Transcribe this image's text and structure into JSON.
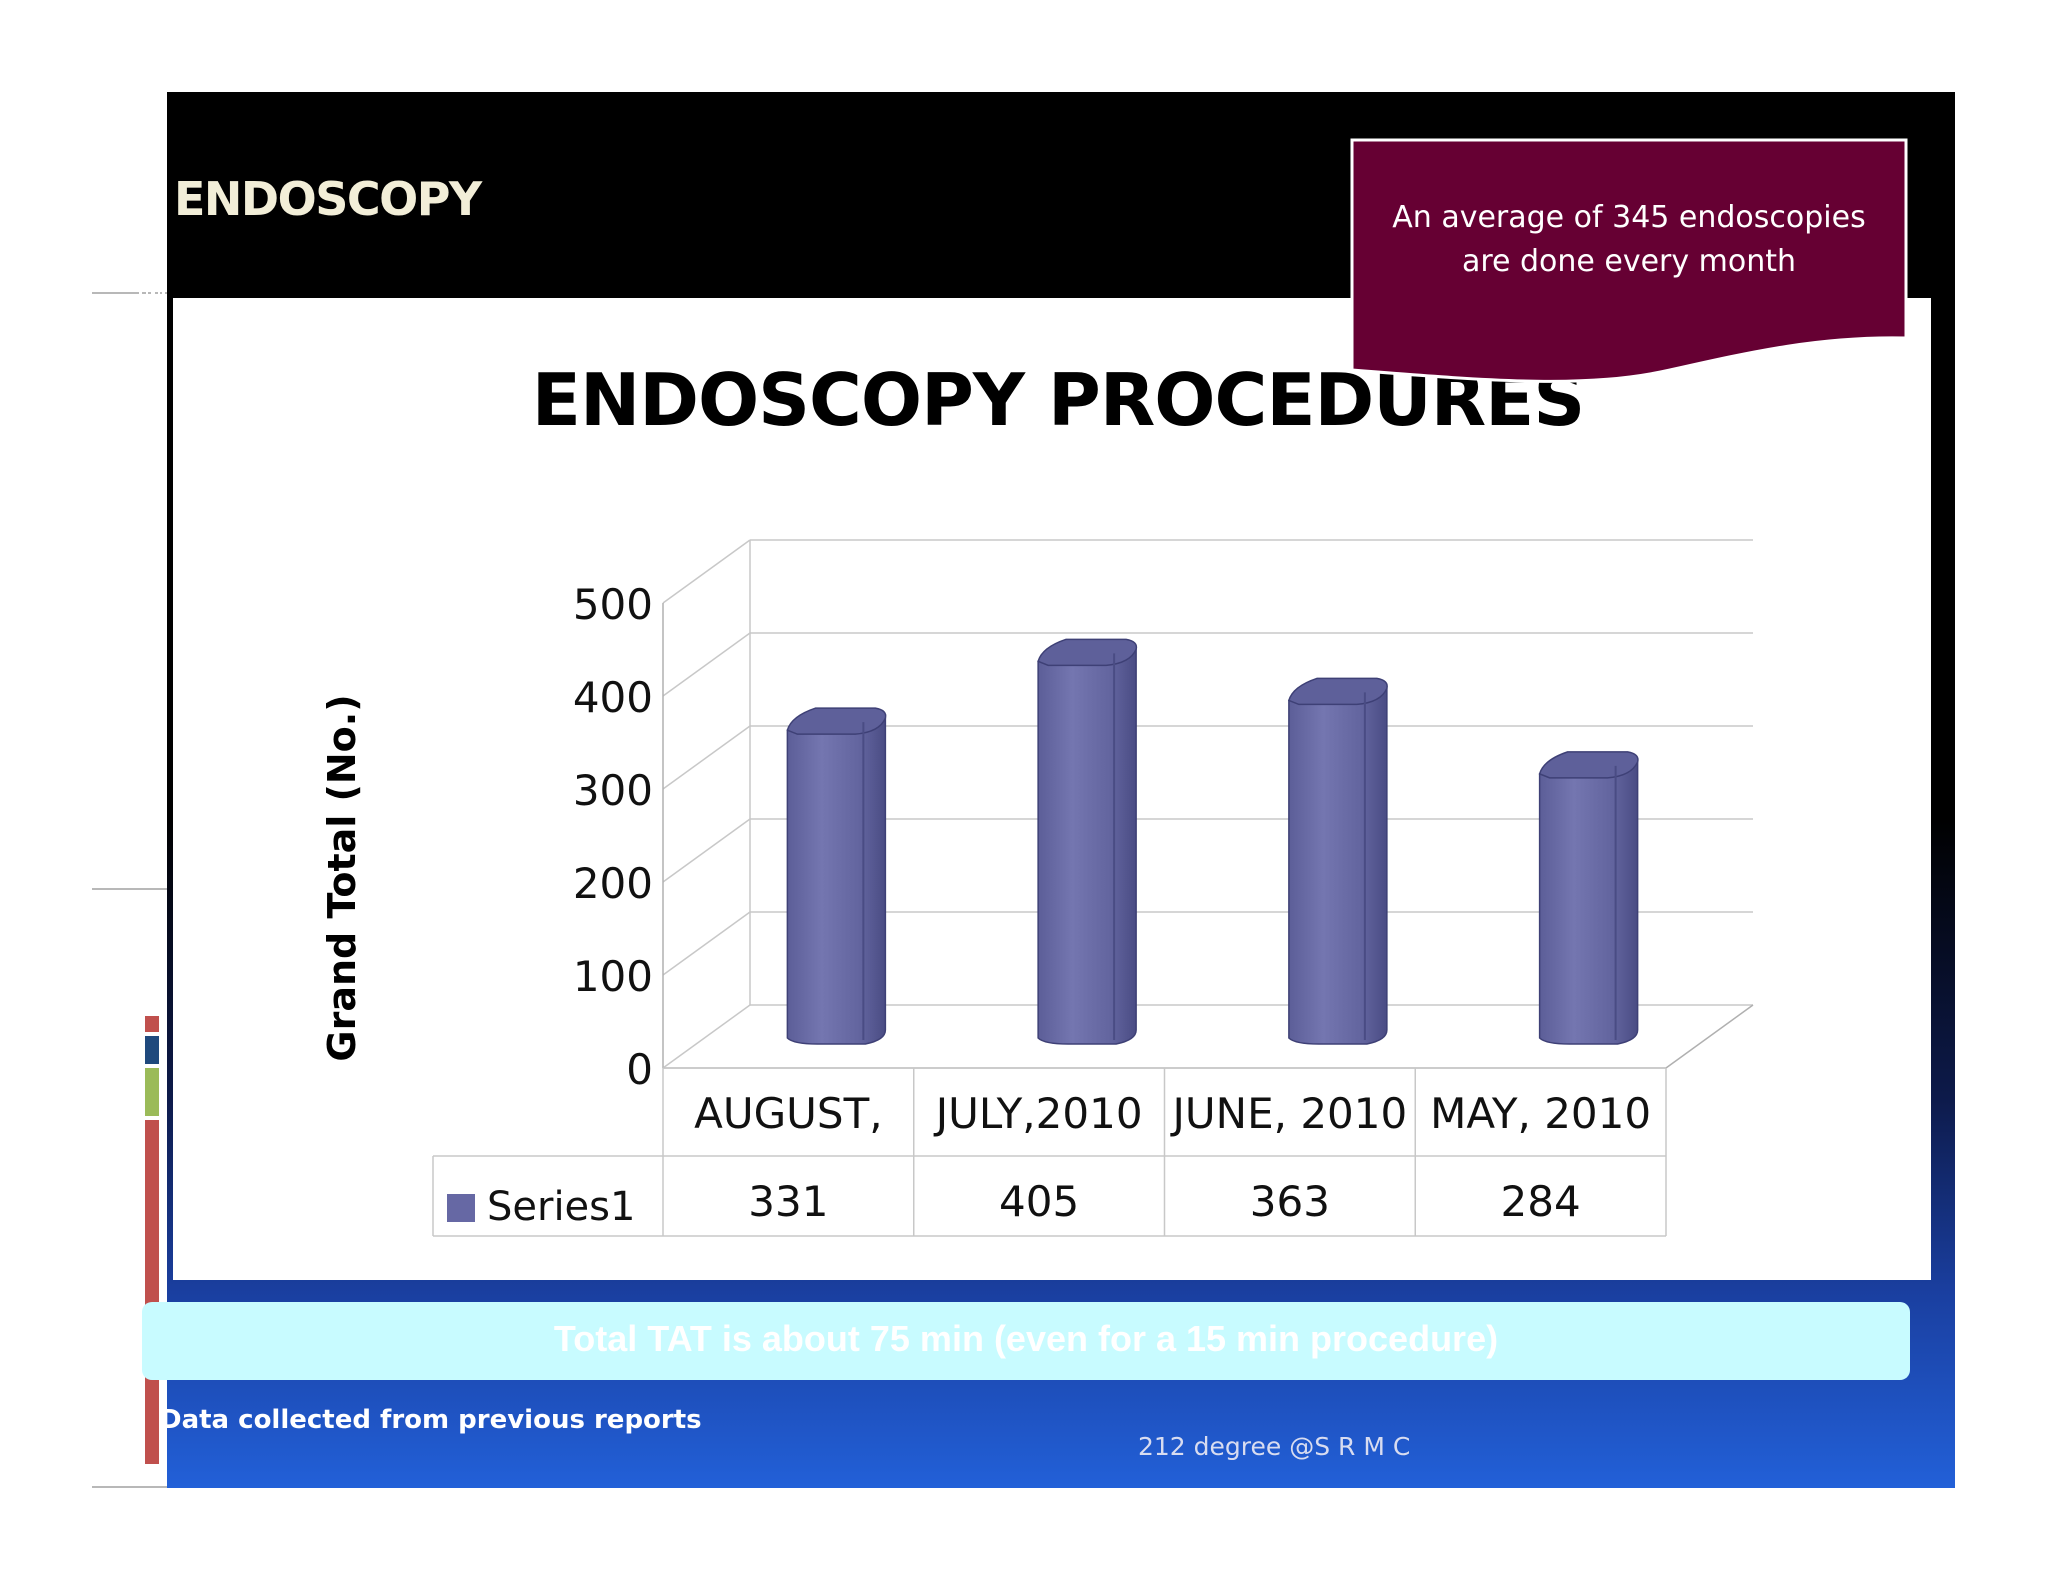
{
  "header": {
    "title": "ENDOSCOPY"
  },
  "callout": {
    "line1": "An average of 345 endoscopies",
    "line2": "are done every month"
  },
  "banner": {
    "text": "Total TAT is about 75 min (even for a 15 min procedure)"
  },
  "footnote": {
    "text": "Data collected from previous reports"
  },
  "footer": {
    "credit": "212 degree @S R M C"
  },
  "colors": {
    "bar": "#6668a4",
    "callout": "#660033",
    "banner": "#c8fbff"
  },
  "chart_data": {
    "type": "bar",
    "title": "ENDOSCOPY PROCEDURES",
    "ylabel": "Grand Total (No.)",
    "xlabel": "",
    "categories": [
      "AUGUST,",
      "JULY,2010",
      "JUNE, 2010",
      "MAY, 2010"
    ],
    "series": [
      {
        "name": "Series1",
        "values": [
          331,
          405,
          363,
          284
        ]
      }
    ],
    "yticks": [
      0,
      100,
      200,
      300,
      400,
      500
    ],
    "ylim": [
      0,
      500
    ],
    "grid": true,
    "legend": "data-table-left",
    "data_table": true,
    "style": "3d-cylinder"
  }
}
